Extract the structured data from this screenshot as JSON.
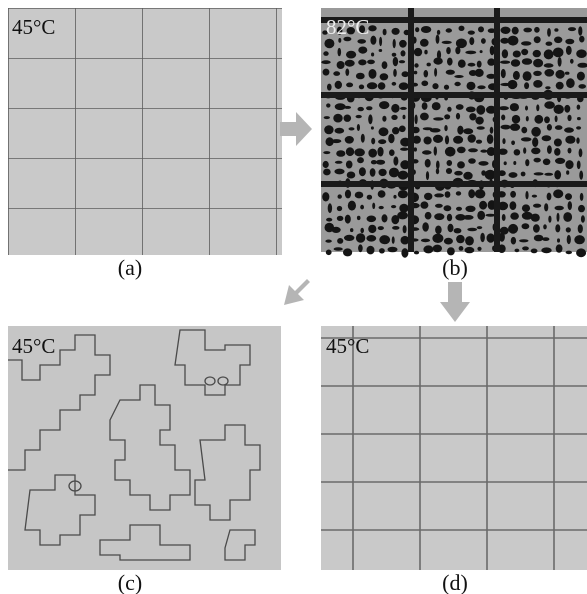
{
  "panels": [
    {
      "temperature": "45°C",
      "caption": "(a)"
    },
    {
      "temperature": "82°C",
      "caption": "(b)"
    },
    {
      "temperature": "45°C",
      "caption": "(c)"
    },
    {
      "temperature": "45°C",
      "caption": "(d)"
    }
  ]
}
